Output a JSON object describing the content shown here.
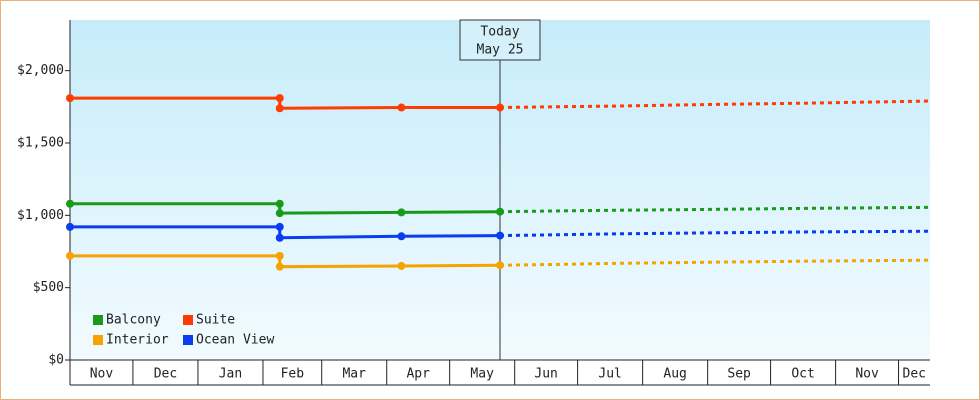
{
  "chart_data": {
    "type": "line",
    "xlim": [
      0,
      410
    ],
    "ylim": [
      0,
      2350
    ],
    "yticks": [
      {
        "value": 0,
        "label": "$0"
      },
      {
        "value": 500,
        "label": "$500"
      },
      {
        "value": 1000,
        "label": "$1,000"
      },
      {
        "value": 1500,
        "label": "$1,500"
      },
      {
        "value": 2000,
        "label": "$2,000"
      }
    ],
    "xticks": [
      {
        "value": 0,
        "label": "Nov"
      },
      {
        "value": 30,
        "label": "Dec"
      },
      {
        "value": 61,
        "label": "Jan"
      },
      {
        "value": 92,
        "label": "Feb"
      },
      {
        "value": 120,
        "label": "Mar"
      },
      {
        "value": 151,
        "label": "Apr"
      },
      {
        "value": 181,
        "label": "May"
      },
      {
        "value": 212,
        "label": "Jun"
      },
      {
        "value": 242,
        "label": "Jul"
      },
      {
        "value": 273,
        "label": "Aug"
      },
      {
        "value": 304,
        "label": "Sep"
      },
      {
        "value": 334,
        "label": "Oct"
      },
      {
        "value": 365,
        "label": "Nov"
      },
      {
        "value": 395,
        "label": "Dec"
      }
    ],
    "annotation": {
      "x": 205,
      "label": "Today",
      "date": "May 25"
    },
    "legend": "lower-left",
    "series": [
      {
        "name": "Balcony",
        "color": "#1a9a1a",
        "x": [
          0,
          100,
          100,
          158,
          205
        ],
        "values": [
          1080,
          1080,
          1015,
          1020,
          1025
        ],
        "forecast_x": [
          205,
          230,
          260,
          300,
          350,
          410
        ],
        "forecast_values": [
          1025,
          1030,
          1035,
          1040,
          1048,
          1055
        ]
      },
      {
        "name": "Suite",
        "color": "#ff3c00",
        "x": [
          0,
          100,
          100,
          158,
          205
        ],
        "values": [
          1810,
          1810,
          1740,
          1745,
          1745
        ],
        "forecast_x": [
          205,
          230,
          260,
          300,
          350,
          410
        ],
        "forecast_values": [
          1745,
          1750,
          1755,
          1765,
          1775,
          1790
        ]
      },
      {
        "name": "Interior",
        "color": "#f5a300",
        "x": [
          0,
          100,
          100,
          158,
          205
        ],
        "values": [
          720,
          720,
          645,
          650,
          655
        ],
        "forecast_x": [
          205,
          230,
          260,
          300,
          350,
          410
        ],
        "forecast_values": [
          655,
          660,
          668,
          675,
          683,
          690
        ]
      },
      {
        "name": "Ocean View",
        "color": "#0a3cf0",
        "x": [
          0,
          100,
          100,
          158,
          205
        ],
        "values": [
          920,
          920,
          845,
          855,
          860
        ],
        "forecast_x": [
          205,
          230,
          260,
          300,
          350,
          410
        ],
        "forecast_values": [
          860,
          865,
          872,
          878,
          885,
          890
        ]
      }
    ]
  }
}
